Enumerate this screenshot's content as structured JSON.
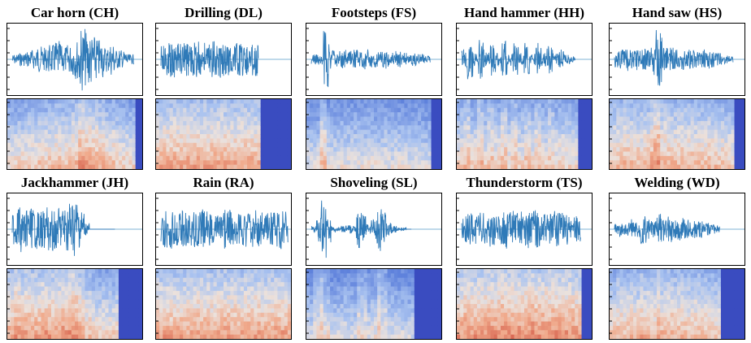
{
  "figure": {
    "panels": [
      {
        "id": "CH",
        "title": "Car horn (CH)",
        "envelope": [
          0.15,
          0.2,
          0.25,
          0.3,
          0.4,
          0.35,
          0.45,
          0.55,
          0.4,
          0.45,
          0.6,
          0.95,
          0.85,
          0.7,
          0.6,
          0.4,
          0.5,
          0.3,
          0.25,
          0.15
        ],
        "active_end": 0.94,
        "spec_profile": "mid"
      },
      {
        "id": "DL",
        "title": "Drilling (DL)",
        "envelope": [
          0.45,
          0.5,
          0.55,
          0.5,
          0.5,
          0.55,
          0.5,
          0.55,
          0.5,
          0.5,
          0.55,
          0.5,
          0.55,
          0.5,
          0.5,
          0.5,
          0.5,
          0.5,
          0.5,
          0.5
        ],
        "active_end": 0.76,
        "spec_profile": "warm"
      },
      {
        "id": "FS",
        "title": "Footsteps (FS)",
        "envelope": [
          0.15,
          0.2,
          0.9,
          0.3,
          0.25,
          0.3,
          0.25,
          0.3,
          0.25,
          0.3,
          0.25,
          0.25,
          0.3,
          0.2,
          0.25,
          0.2,
          0.15,
          0.2,
          0.15,
          0.1
        ],
        "active_end": 0.92,
        "spec_profile": "cool"
      },
      {
        "id": "HH",
        "title": "Hand hammer (HH)",
        "envelope": [
          0.3,
          0.6,
          0.2,
          0.6,
          0.2,
          0.55,
          0.2,
          0.6,
          0.2,
          0.55,
          0.2,
          0.5,
          0.2,
          0.5,
          0.2,
          0.45,
          0.2,
          0.3,
          0.15,
          0.1
        ],
        "active_end": 0.88,
        "spec_profile": "mid"
      },
      {
        "id": "HS",
        "title": "Hand saw (HS)",
        "envelope": [
          0.25,
          0.3,
          0.4,
          0.35,
          0.3,
          0.35,
          0.5,
          0.9,
          0.4,
          0.35,
          0.3,
          0.35,
          0.3,
          0.3,
          0.25,
          0.3,
          0.25,
          0.2,
          0.15,
          0.1
        ],
        "active_end": 0.92,
        "spec_profile": "warm"
      },
      {
        "id": "JH",
        "title": "Jackhammer (JH)",
        "envelope": [
          0.5,
          0.7,
          0.55,
          0.65,
          0.6,
          0.55,
          0.7,
          0.65,
          0.6,
          0.65,
          0.7,
          0.85,
          0.9,
          0.6,
          0.2,
          0,
          0,
          0,
          0,
          0
        ],
        "active_end": 0.8,
        "spec_profile": "warm"
      },
      {
        "id": "RA",
        "title": "Rain (RA)",
        "envelope": [
          0.55,
          0.6,
          0.5,
          0.55,
          0.5,
          0.55,
          0.6,
          0.55,
          0.5,
          0.55,
          0.6,
          0.55,
          0.5,
          0.55,
          0.6,
          0.55,
          0.5,
          0.55,
          0.6,
          0.55
        ],
        "active_end": 0.98,
        "spec_profile": "warm"
      },
      {
        "id": "SL",
        "title": "Shoveling (SL)",
        "envelope": [
          0.1,
          0.5,
          0.9,
          0.4,
          0.1,
          0.05,
          0.1,
          0.15,
          0.1,
          0.6,
          0.45,
          0.15,
          0.3,
          0.7,
          0.5,
          0.2,
          0.1,
          0.05,
          0.05,
          0
        ],
        "active_end": 0.78,
        "spec_profile": "cool"
      },
      {
        "id": "TS",
        "title": "Thunderstorm (TS)",
        "envelope": [
          0.4,
          0.5,
          0.45,
          0.5,
          0.55,
          0.5,
          0.55,
          0.6,
          0.55,
          0.5,
          0.55,
          0.6,
          0.55,
          0.5,
          0.5,
          0.55,
          0.5,
          0.5,
          0.45,
          0.4
        ],
        "active_end": 0.92,
        "spec_profile": "hot"
      },
      {
        "id": "WD",
        "title": "Welding (WD)",
        "envelope": [
          0.15,
          0.25,
          0.2,
          0.3,
          0.25,
          0.45,
          0.35,
          0.3,
          0.5,
          0.35,
          0.4,
          0.3,
          0.35,
          0.3,
          0.25,
          0.3,
          0.25,
          0.2,
          0.15,
          0.1
        ],
        "active_end": 0.82,
        "spec_profile": "warm"
      }
    ]
  }
}
